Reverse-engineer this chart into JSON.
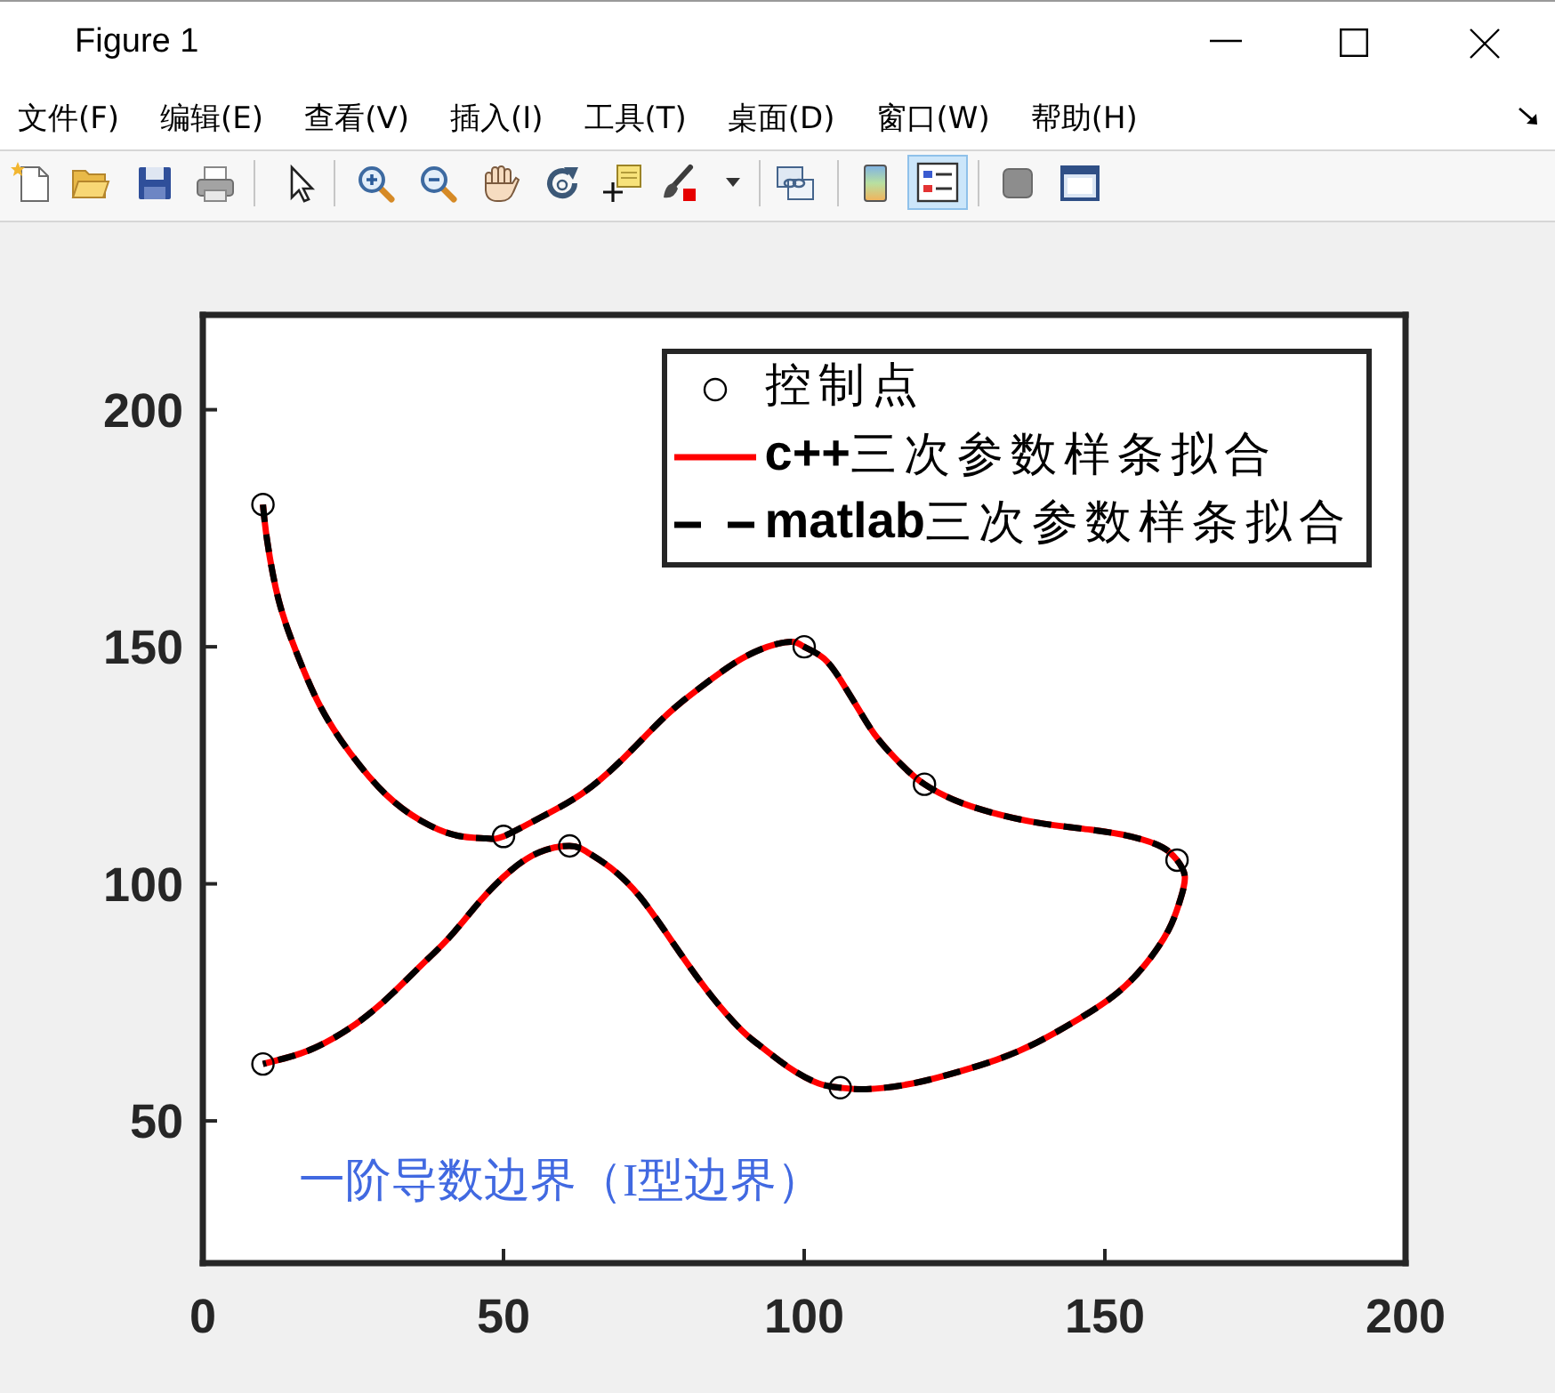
{
  "chart_data": {
    "type": "line",
    "annotations": [
      "一阶导数边界（I型边界）",
      "Figure 1",
      "文件(F)",
      "编辑(E)",
      "查看(V)",
      "插入(I)",
      "工具(T)",
      "桌面(D)",
      "窗口(W)",
      "帮助(H)"
    ],
    "xlim": [
      0,
      200
    ],
    "xticks": [
      0,
      50,
      100,
      150,
      200
    ],
    "ylim": [
      20,
      220
    ],
    "yticks": [
      50,
      100,
      150,
      200
    ],
    "legend": "top right",
    "series": [
      {
        "name": "控制点",
        "type": "scatter",
        "color": "#000000",
        "marker": "circle",
        "x": [
          10,
          50,
          100,
          120,
          162,
          106,
          61,
          10
        ],
        "values": [
          180,
          110,
          150,
          121,
          105,
          57,
          108,
          62
        ]
      },
      {
        "name": "c++三次参数样条拟合",
        "color": "#ff0000",
        "line_style": "solid",
        "x": [
          10,
          10.7,
          12.6,
          15.6,
          19.5,
          24.5,
          30.4,
          36.3,
          42.2,
          47.1,
          50,
          56,
          62.9,
          69.8,
          76.7,
          82.6,
          89.6,
          95.5,
          98.4,
          100,
          103.3,
          106.3,
          109.3,
          112.2,
          116.2,
          120,
          125.1,
          131,
          138.8,
          147.7,
          154.6,
          159.6,
          162,
          163.3,
          162.5,
          160.6,
          156.6,
          151.7,
          145.8,
          138.8,
          132,
          124.1,
          117.2,
          110.3,
          106,
          102.4,
          97.3,
          92.5,
          89.6,
          84.6,
          78.7,
          72.8,
          67.8,
          63.9,
          61,
          56,
          51.1,
          46.2,
          41.2,
          36.3,
          31.3,
          25.4,
          18.6,
          13.6,
          10
        ],
        "values": [
          180,
          172.4,
          159.9,
          148.7,
          137.5,
          127.6,
          118.9,
          113.3,
          110.2,
          109.6,
          110,
          113.9,
          118.9,
          126.3,
          135.1,
          141.3,
          147.5,
          150.6,
          151,
          150,
          147.5,
          142.5,
          136.3,
          130.7,
          125.1,
          121,
          117.6,
          115.1,
          112.9,
          111.4,
          109.9,
          107.7,
          105,
          101.5,
          96.5,
          90.3,
          82.8,
          76.6,
          71.6,
          66.6,
          62.9,
          59.8,
          57.7,
          56.7,
          57,
          57.9,
          61.4,
          66,
          69.1,
          76.3,
          86.6,
          97.1,
          103.4,
          106.7,
          108,
          106.7,
          102.7,
          96.5,
          89,
          82.8,
          76.6,
          70.4,
          65.4,
          63.2,
          62
        ]
      },
      {
        "name": "matlab三次参数样条拟合",
        "color": "#000000",
        "line_style": "dashed",
        "x": [
          10,
          10.7,
          12.6,
          15.6,
          19.5,
          24.5,
          30.4,
          36.3,
          42.2,
          47.1,
          50,
          56,
          62.9,
          69.8,
          76.7,
          82.6,
          89.6,
          95.5,
          98.4,
          100,
          103.3,
          106.3,
          109.3,
          112.2,
          116.2,
          120,
          125.1,
          131,
          138.8,
          147.7,
          154.6,
          159.6,
          162,
          163.3,
          162.5,
          160.6,
          156.6,
          151.7,
          145.8,
          138.8,
          132,
          124.1,
          117.2,
          110.3,
          106,
          102.4,
          97.3,
          92.5,
          89.6,
          84.6,
          78.7,
          72.8,
          67.8,
          63.9,
          61,
          56,
          51.1,
          46.2,
          41.2,
          36.3,
          31.3,
          25.4,
          18.6,
          13.6,
          10
        ],
        "values": [
          180,
          172.4,
          159.9,
          148.7,
          137.5,
          127.6,
          118.9,
          113.3,
          110.2,
          109.6,
          110,
          113.9,
          118.9,
          126.3,
          135.1,
          141.3,
          147.5,
          150.6,
          151,
          150,
          147.5,
          142.5,
          136.3,
          130.7,
          125.1,
          121,
          117.6,
          115.1,
          112.9,
          111.4,
          109.9,
          107.7,
          105,
          101.5,
          96.5,
          90.3,
          82.8,
          76.6,
          71.6,
          66.6,
          62.9,
          59.8,
          57.7,
          56.7,
          57,
          57.9,
          61.4,
          66,
          69.1,
          76.3,
          86.6,
          97.1,
          103.4,
          106.7,
          108,
          106.7,
          102.7,
          96.5,
          89,
          82.8,
          76.6,
          70.4,
          65.4,
          63.2,
          62
        ]
      }
    ]
  }
}
